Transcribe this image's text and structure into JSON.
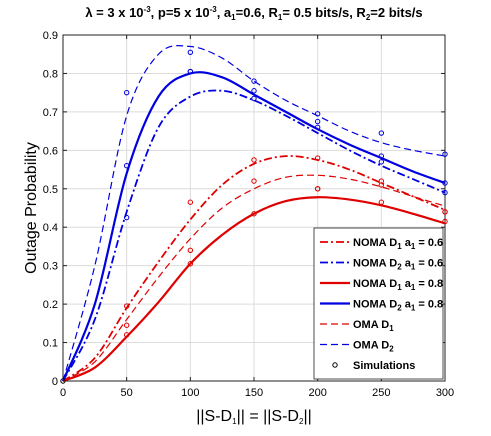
{
  "chart_data": {
    "type": "line",
    "title": {
      "parts": [
        {
          "t": "λ = 3 x 10"
        },
        {
          "t": "-3",
          "sup": true
        },
        {
          "t": ", p=5 x 10"
        },
        {
          "t": "-3",
          "sup": true
        },
        {
          "t": ", a"
        },
        {
          "t": "1",
          "sub": true
        },
        {
          "t": "=0.6, R"
        },
        {
          "t": "1",
          "sub": true
        },
        {
          "t": "= 0.5 bits/s, R"
        },
        {
          "t": "2",
          "sub": true
        },
        {
          "t": "=2 bits/s"
        }
      ]
    },
    "xlabel": {
      "parts": [
        {
          "t": "||S-D"
        },
        {
          "t": "1",
          "sub": true
        },
        {
          "t": "|| = ||S-D"
        },
        {
          "t": "2",
          "sub": true
        },
        {
          "t": "||"
        }
      ]
    },
    "ylabel": "Outage Probability",
    "xlim": [
      0,
      300
    ],
    "ylim": [
      0,
      0.9
    ],
    "xticks": [
      "0",
      "50",
      "100",
      "150",
      "200",
      "250",
      "300"
    ],
    "yticks": [
      "0",
      "0.1",
      "0.2",
      "0.3",
      "0.4",
      "0.5",
      "0.6",
      "0.7",
      "0.8",
      "0.9"
    ],
    "grid": true,
    "legend_position": "bottom-right",
    "series": [
      {
        "name": "NOMA D1 a1 = 0.6",
        "legend": [
          {
            "t": "NOMA D"
          },
          {
            "t": "1",
            "sub": true
          },
          {
            "t": " a"
          },
          {
            "t": "1",
            "sub": true
          },
          {
            "t": " = 0.6"
          }
        ],
        "color": "#e00000",
        "dash": "dashdot",
        "width": 1.8,
        "x": [
          0,
          25,
          50,
          75,
          100,
          125,
          150,
          175,
          200,
          225,
          250,
          275,
          300
        ],
        "y": [
          0,
          0.06,
          0.19,
          0.31,
          0.42,
          0.51,
          0.565,
          0.585,
          0.575,
          0.55,
          0.515,
          0.48,
          0.445
        ],
        "sim_x": [
          50,
          100,
          150,
          200,
          250,
          300
        ],
        "sim_y": [
          0.195,
          0.465,
          0.575,
          0.58,
          0.52,
          0.44
        ]
      },
      {
        "name": "NOMA D2 a1 = 0.6",
        "legend": [
          {
            "t": "NOMA D"
          },
          {
            "t": "2",
            "sub": true
          },
          {
            "t": " a"
          },
          {
            "t": "1",
            "sub": true
          },
          {
            "t": " = 0.6"
          }
        ],
        "color": "#0000e0",
        "dash": "dashdot",
        "width": 1.8,
        "x": [
          0,
          25,
          50,
          75,
          100,
          125,
          150,
          175,
          200,
          225,
          250,
          275,
          300
        ],
        "y": [
          0,
          0.16,
          0.44,
          0.66,
          0.74,
          0.755,
          0.73,
          0.69,
          0.645,
          0.6,
          0.56,
          0.525,
          0.49
        ],
        "sim_x": [
          50,
          100,
          150,
          200,
          250,
          300
        ],
        "sim_y": [
          0.425,
          0.805,
          0.735,
          0.66,
          0.57,
          0.49
        ]
      },
      {
        "name": "NOMA D1 a1 = 0.8",
        "legend": [
          {
            "t": "NOMA D"
          },
          {
            "t": "1",
            "sub": true
          },
          {
            "t": " a"
          },
          {
            "t": "1",
            "sub": true
          },
          {
            "t": " = 0.8"
          }
        ],
        "color": "#e00000",
        "dash": "solid",
        "width": 2.2,
        "x": [
          0,
          25,
          50,
          75,
          100,
          125,
          150,
          175,
          200,
          225,
          250,
          275,
          300
        ],
        "y": [
          0,
          0.035,
          0.115,
          0.205,
          0.305,
          0.38,
          0.435,
          0.468,
          0.478,
          0.472,
          0.457,
          0.435,
          0.41
        ],
        "sim_x": [
          50,
          100,
          150,
          200,
          250,
          300
        ],
        "sim_y": [
          0.12,
          0.305,
          0.435,
          0.5,
          0.465,
          0.415
        ]
      },
      {
        "name": "NOMA D2 a1 = 0.8",
        "legend": [
          {
            "t": "NOMA D"
          },
          {
            "t": "2",
            "sub": true
          },
          {
            "t": " a"
          },
          {
            "t": "1",
            "sub": true
          },
          {
            "t": " = 0.8"
          }
        ],
        "color": "#0000e0",
        "dash": "solid",
        "width": 2.2,
        "x": [
          0,
          25,
          50,
          75,
          100,
          125,
          150,
          175,
          200,
          225,
          250,
          275,
          300
        ],
        "y": [
          0,
          0.2,
          0.54,
          0.74,
          0.8,
          0.79,
          0.745,
          0.7,
          0.655,
          0.615,
          0.58,
          0.545,
          0.515
        ],
        "sim_x": [
          50,
          100,
          150,
          200,
          250,
          300
        ],
        "sim_y": [
          0.56,
          0.805,
          0.755,
          0.675,
          0.585,
          0.515
        ]
      },
      {
        "name": "OMA D1",
        "legend": [
          {
            "t": "OMA D"
          },
          {
            "t": "1",
            "sub": true
          }
        ],
        "color": "#e00000",
        "dash": "dashed",
        "width": 1.2,
        "x": [
          0,
          25,
          50,
          75,
          100,
          125,
          150,
          175,
          200,
          225,
          250,
          275,
          300
        ],
        "y": [
          0,
          0.05,
          0.16,
          0.27,
          0.37,
          0.45,
          0.5,
          0.53,
          0.535,
          0.525,
          0.505,
          0.48,
          0.455
        ],
        "sim_x": [
          50,
          100,
          150,
          200,
          250,
          300
        ],
        "sim_y": [
          0.145,
          0.34,
          0.52,
          0.5,
          0.51,
          0.44
        ]
      },
      {
        "name": "OMA D2",
        "legend": [
          {
            "t": "OMA D"
          },
          {
            "t": "2",
            "sub": true
          }
        ],
        "color": "#0000e0",
        "dash": "dashed",
        "width": 1.2,
        "x": [
          0,
          25,
          50,
          75,
          100,
          125,
          150,
          175,
          200,
          225,
          250,
          275,
          300
        ],
        "y": [
          0,
          0.3,
          0.69,
          0.85,
          0.87,
          0.84,
          0.78,
          0.73,
          0.69,
          0.65,
          0.62,
          0.6,
          0.585
        ],
        "sim_x": [
          50,
          100,
          150,
          200,
          250,
          300
        ],
        "sim_y": [
          0.75,
          0.855,
          0.78,
          0.695,
          0.645,
          0.59
        ]
      }
    ],
    "simulations_label": "Simulations"
  }
}
